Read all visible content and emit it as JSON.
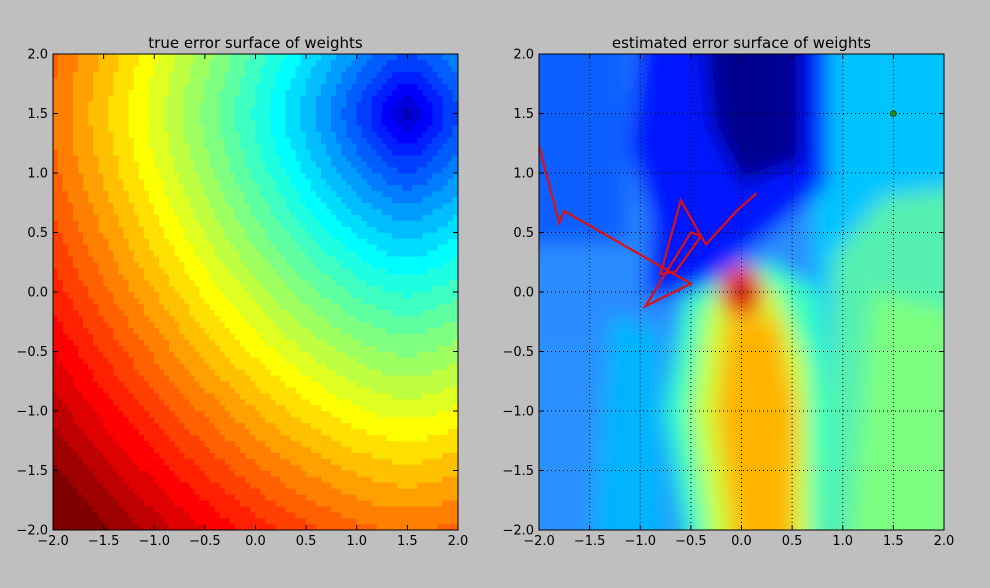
{
  "chart_data": [
    {
      "type": "heatmap",
      "title": "true error surface of weights",
      "xlabel": "",
      "ylabel": "",
      "xlim": [
        -2.0,
        2.0
      ],
      "ylim": [
        -2.0,
        2.0
      ],
      "xticks": [
        "−2.0",
        "−1.5",
        "−1.0",
        "−0.5",
        "0.0",
        "0.5",
        "1.0",
        "1.5",
        "2.0"
      ],
      "yticks": [
        "−2.0",
        "−1.5",
        "−1.0",
        "−0.5",
        "0.0",
        "0.5",
        "1.0",
        "1.5",
        "2.0"
      ],
      "grid": false,
      "colormap": "jet",
      "minimum": [
        1.5,
        1.5
      ],
      "levels": 30
    },
    {
      "type": "heatmap",
      "title": "estimated error surface of weights",
      "xlabel": "",
      "ylabel": "",
      "xlim": [
        -2.0,
        2.0
      ],
      "ylim": [
        -2.0,
        2.0
      ],
      "xticks": [
        "−2.0",
        "−1.5",
        "−1.0",
        "−0.5",
        "0.0",
        "0.5",
        "1.0",
        "1.5",
        "2.0"
      ],
      "yticks": [
        "−2.0",
        "−1.5",
        "−1.0",
        "−0.5",
        "0.0",
        "0.5",
        "1.0",
        "1.5",
        "2.0"
      ],
      "grid": true,
      "colormap": "jet",
      "levels": 12,
      "series": [
        {
          "type": "line",
          "color": "#dd1111",
          "x": [
            0.15,
            -0.05,
            -0.35,
            -0.4,
            -0.6,
            -0.8,
            -0.65,
            -0.4,
            -0.5,
            -0.95,
            -0.5,
            -1.75,
            -1.8,
            -2.0
          ],
          "y": [
            0.83,
            0.68,
            0.4,
            0.47,
            0.77,
            0.15,
            0.17,
            0.47,
            0.5,
            -0.12,
            0.07,
            0.68,
            0.58,
            1.23
          ]
        },
        {
          "type": "scatter",
          "color": "#1f8a1f",
          "x": [
            1.5
          ],
          "y": [
            1.5
          ]
        }
      ]
    }
  ]
}
